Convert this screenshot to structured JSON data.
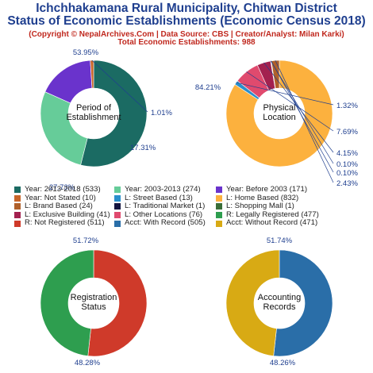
{
  "header": {
    "title_line1": "Ichchhakamana Rural Municipality, Chitwan District",
    "title_line2": "Status of Economic Establishments (Economic Census 2018)",
    "credit": "(Copyright © NepalArchives.Com | Data Source: CBS | Creator/Analyst: Milan Karki)",
    "total": "Total Economic Establishments: 988"
  },
  "colors": {
    "title": "#1f3f8f",
    "subtitle": "#c0281e",
    "value_label": "#1f3f8f"
  },
  "chart_data": [
    {
      "type": "pie",
      "center_label": [
        "Period of",
        "Establishment"
      ],
      "slices": [
        {
          "label": "Year: 2013-2018",
          "count": 533,
          "percent_label": "53.95%",
          "color": "#1b6b63"
        },
        {
          "label": "Year: 2003-2013",
          "count": 274,
          "percent_label": "27.73%",
          "color": "#66cc99"
        },
        {
          "label": "Year: Before 2003",
          "count": 171,
          "percent_label": "17.31%",
          "color": "#6a33cc"
        },
        {
          "label": "Year: Not Stated",
          "count": 10,
          "percent_label": "1.01%",
          "color": "#c8662a"
        }
      ]
    },
    {
      "type": "pie",
      "center_label": [
        "Physical",
        "Location"
      ],
      "slices": [
        {
          "label": "L: Home Based",
          "count": 832,
          "percent_label": "84.21%",
          "color": "#fcb13e"
        },
        {
          "label": "L: Street Based",
          "count": 13,
          "percent_label": "1.32%",
          "color": "#2a8fcc"
        },
        {
          "label": "L: Other Locations",
          "count": 76,
          "percent_label": "7.69%",
          "color": "#e04a6e"
        },
        {
          "label": "L: Exclusive Building",
          "count": 41,
          "percent_label": "4.15%",
          "color": "#a3214f"
        },
        {
          "label": "L: Traditional Market",
          "count": 1,
          "percent_label": "0.10%",
          "color": "#141440"
        },
        {
          "label": "L: Shopping Mall",
          "count": 1,
          "percent_label": "0.10%",
          "color": "#3a6e38"
        },
        {
          "label": "L: Brand Based",
          "count": 24,
          "percent_label": "2.43%",
          "color": "#b0602a"
        }
      ]
    },
    {
      "type": "pie",
      "center_label": [
        "Registration",
        "Status"
      ],
      "slices": [
        {
          "label": "R: Not Registered",
          "count": 511,
          "percent_label": "51.72%",
          "color": "#cf3a2a"
        },
        {
          "label": "R: Legally Registered",
          "count": 477,
          "percent_label": "48.28%",
          "color": "#2e9e4f"
        }
      ]
    },
    {
      "type": "pie",
      "center_label": [
        "Accounting",
        "Records"
      ],
      "slices": [
        {
          "label": "Acct: With Record",
          "count": 505,
          "percent_label": "51.74%",
          "color": "#2a6ea8"
        },
        {
          "label": "Acct: Without Record",
          "count": 471,
          "percent_label": "48.26%",
          "color": "#d8aa14"
        }
      ]
    }
  ],
  "legend": [
    {
      "text": "Year: 2013-2018 (533)",
      "color": "#1b6b63"
    },
    {
      "text": "Year: 2003-2013 (274)",
      "color": "#66cc99"
    },
    {
      "text": "Year: Before 2003 (171)",
      "color": "#6a33cc"
    },
    {
      "text": "Year: Not Stated (10)",
      "color": "#c8662a"
    },
    {
      "text": "L: Street Based (13)",
      "color": "#2a8fcc"
    },
    {
      "text": "L: Home Based (832)",
      "color": "#fcb13e"
    },
    {
      "text": "L: Brand Based (24)",
      "color": "#b0602a"
    },
    {
      "text": "L: Traditional Market (1)",
      "color": "#141440"
    },
    {
      "text": "L: Shopping Mall (1)",
      "color": "#3a6e38"
    },
    {
      "text": "L: Exclusive Building (41)",
      "color": "#a3214f"
    },
    {
      "text": "L: Other Locations (76)",
      "color": "#e04a6e"
    },
    {
      "text": "R: Legally Registered (477)",
      "color": "#2e9e4f"
    },
    {
      "text": "R: Not Registered (511)",
      "color": "#cf3a2a"
    },
    {
      "text": "Acct: With Record (505)",
      "color": "#2a6ea8"
    },
    {
      "text": "Acct: Without Record (471)",
      "color": "#d8aa14"
    }
  ]
}
